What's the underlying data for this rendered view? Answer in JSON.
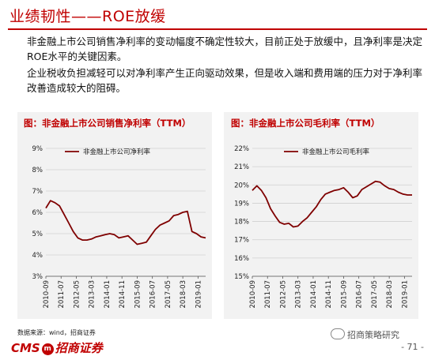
{
  "header": {
    "title": "业绩韧性——ROE放缓"
  },
  "paragraphs": [
    "非金融上市公司销售净利率的变动幅度不确定性较大，目前正处于放缓中，且净利率是决定ROE水平的关键因素。",
    "企业税收负担减轻可以对净利率产生正向驱动效果，但是收入端和费用端的压力对于净利率改善造成较大的阻碍。"
  ],
  "charts": [
    {
      "panel_title": "图：非金融上市公司销售净利率（TTM）"
    },
    {
      "panel_title": "图：非金融上市公司毛利率（TTM）"
    }
  ],
  "chart_data": [
    {
      "type": "line",
      "title": "图：非金融上市公司销售净利率（TTM）",
      "legend": "top-left",
      "ylim": [
        3,
        9
      ],
      "yticks": [
        "3%",
        "4%",
        "5%",
        "6%",
        "7%",
        "8%",
        "9%"
      ],
      "xticks": [
        "2010-09",
        "2011-07",
        "2012-05",
        "2013-03",
        "2014-01",
        "2014-11",
        "2015-09",
        "2016-07",
        "2017-05",
        "2018-03",
        "2019-01"
      ],
      "series": [
        {
          "name": "非金融上市公司净利率",
          "color": "#7f0000",
          "x": [
            "2010-09",
            "2010-12",
            "2011-03",
            "2011-06",
            "2011-09",
            "2011-12",
            "2012-03",
            "2012-06",
            "2012-09",
            "2012-12",
            "2013-03",
            "2013-06",
            "2013-09",
            "2013-12",
            "2014-03",
            "2014-06",
            "2014-09",
            "2014-12",
            "2015-03",
            "2015-06",
            "2015-09",
            "2015-12",
            "2016-03",
            "2016-06",
            "2016-09",
            "2016-12",
            "2017-03",
            "2017-06",
            "2017-09",
            "2017-12",
            "2018-03",
            "2018-06",
            "2018-09",
            "2018-12",
            "2019-03",
            "2019-06"
          ],
          "values": [
            6.2,
            6.55,
            6.45,
            6.3,
            5.9,
            5.5,
            5.1,
            4.8,
            4.7,
            4.7,
            4.75,
            4.85,
            4.9,
            4.95,
            5.0,
            4.95,
            4.8,
            4.85,
            4.9,
            4.7,
            4.5,
            4.55,
            4.6,
            4.9,
            5.2,
            5.4,
            5.5,
            5.6,
            5.85,
            5.9,
            6.0,
            6.05,
            5.1,
            5.0,
            4.85,
            4.8
          ]
        }
      ]
    },
    {
      "type": "line",
      "title": "图：非金融上市公司毛利率（TTM）",
      "legend": "top-right",
      "ylim": [
        15,
        22
      ],
      "yticks": [
        "15%",
        "16%",
        "17%",
        "18%",
        "19%",
        "20%",
        "21%",
        "22%"
      ],
      "xticks": [
        "2010-09",
        "2011-07",
        "2012-05",
        "2013-03",
        "2014-01",
        "2014-11",
        "2015-09",
        "2016-07",
        "2017-05",
        "2018-03",
        "2019-01"
      ],
      "series": [
        {
          "name": "非金融上市公司毛利率",
          "color": "#7f0000",
          "x": [
            "2010-09",
            "2010-12",
            "2011-03",
            "2011-06",
            "2011-09",
            "2011-12",
            "2012-03",
            "2012-06",
            "2012-09",
            "2012-12",
            "2013-03",
            "2013-06",
            "2013-09",
            "2013-12",
            "2014-03",
            "2014-06",
            "2014-09",
            "2014-12",
            "2015-03",
            "2015-06",
            "2015-09",
            "2015-12",
            "2016-03",
            "2016-06",
            "2016-09",
            "2016-12",
            "2017-03",
            "2017-06",
            "2017-09",
            "2017-12",
            "2018-03",
            "2018-06",
            "2018-09",
            "2018-12",
            "2019-03",
            "2019-06"
          ],
          "values": [
            19.7,
            19.95,
            19.7,
            19.3,
            18.7,
            18.3,
            17.95,
            17.85,
            17.9,
            17.7,
            17.75,
            18.0,
            18.2,
            18.5,
            18.8,
            19.2,
            19.5,
            19.6,
            19.7,
            19.75,
            19.85,
            19.6,
            19.3,
            19.4,
            19.75,
            19.9,
            20.05,
            20.2,
            20.15,
            19.95,
            19.8,
            19.75,
            19.6,
            19.5,
            19.45,
            19.45
          ]
        }
      ]
    }
  ],
  "footer": {
    "source": "数据来源：wind，招商证券",
    "logo_text": "CMS",
    "logo_badge": "m",
    "logo_cn": "招商证券",
    "wechat": "招商策略研究",
    "page": "- 71 -"
  }
}
